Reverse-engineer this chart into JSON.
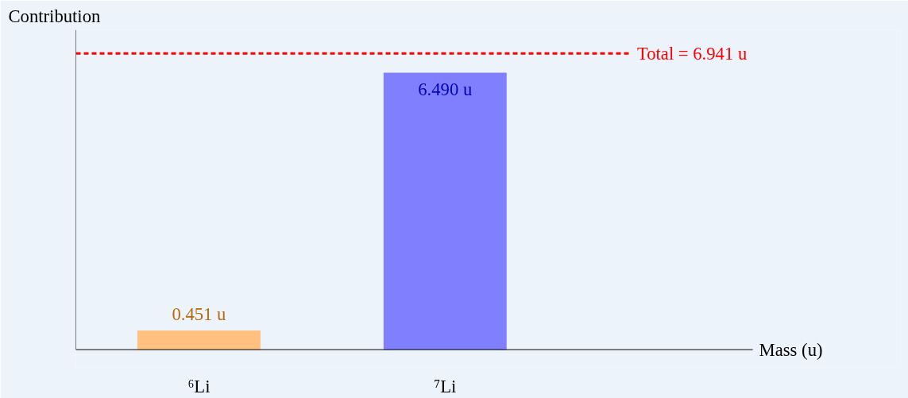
{
  "chart_data": {
    "type": "bar",
    "xlabel": "Mass (u)",
    "ylabel": "Contribution",
    "categories": [
      "⁶Li",
      "⁷Li"
    ],
    "values": [
      0.451,
      6.49
    ],
    "colors": [
      "#ffc080",
      "#8080ff"
    ],
    "value_labels": [
      "0.451 u",
      "6.490 u"
    ],
    "ref_lines": [
      {
        "axis": "y",
        "value": 6.941,
        "label": "Total = 6.941 u",
        "color": "#ff0000",
        "line_style": "dashed"
      }
    ]
  }
}
